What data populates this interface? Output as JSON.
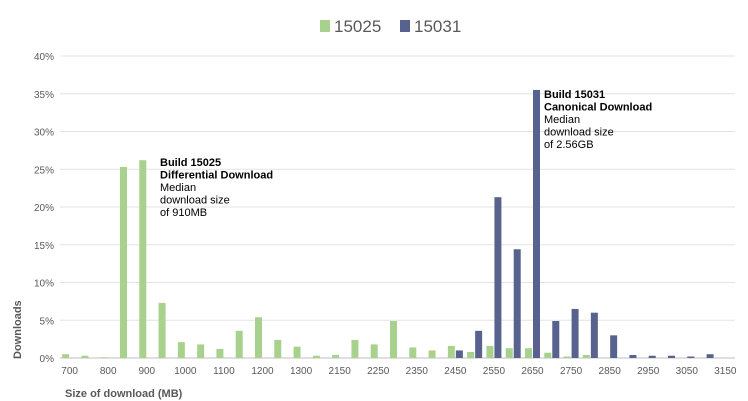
{
  "chart_data": {
    "type": "bar",
    "title": "",
    "xlabel": "Size of download (MB)",
    "ylabel": "Downloads",
    "ylim": [
      0,
      40
    ],
    "yticks": [
      "0%",
      "5%",
      "10%",
      "15%",
      "20%",
      "25%",
      "30%",
      "35%",
      "40%"
    ],
    "grid": true,
    "legend_position": "top",
    "categories": [
      "700",
      "750",
      "800",
      "850",
      "900",
      "950",
      "1000",
      "1050",
      "1100",
      "1150",
      "1200",
      "1250",
      "1300",
      "1350",
      "2150",
      "2200",
      "2250",
      "2300",
      "2350",
      "2400",
      "2450",
      "2500",
      "2550",
      "2600",
      "2650",
      "2700",
      "2750",
      "2800",
      "2850",
      "2900",
      "2950",
      "3000",
      "3050",
      "3100",
      "3150"
    ],
    "xtick_labels": [
      "700",
      "800",
      "900",
      "1000",
      "1100",
      "1200",
      "1300",
      "2150",
      "2250",
      "2350",
      "2450",
      "2550",
      "2650",
      "2750",
      "2850",
      "2950",
      "3050",
      "3150"
    ],
    "series": [
      {
        "name": "15025",
        "color": "#a9d18e",
        "values": [
          0.5,
          0.3,
          0.1,
          25.3,
          26.2,
          7.3,
          2.1,
          1.8,
          1.2,
          3.6,
          5.4,
          2.4,
          1.5,
          0.3,
          0.4,
          2.4,
          1.8,
          4.9,
          1.4,
          1.0,
          1.6,
          0.8,
          1.6,
          1.3,
          1.3,
          0.7,
          0.2,
          0.4,
          0,
          0,
          0,
          0,
          0,
          0,
          0
        ]
      },
      {
        "name": "15031",
        "color": "#58628e",
        "values": [
          0,
          0,
          0,
          0,
          0,
          0,
          0,
          0,
          0,
          0,
          0,
          0,
          0,
          0,
          0,
          0,
          0,
          0,
          0,
          0,
          1.0,
          3.6,
          21.3,
          14.4,
          35.5,
          4.9,
          6.5,
          6.0,
          3.0,
          0.4,
          0.3,
          0.3,
          0.2,
          0.5,
          0
        ]
      }
    ],
    "annotations": [
      {
        "category": "900",
        "lines": [
          {
            "text": "Build 15025",
            "bold": true
          },
          {
            "text": "Differential Download",
            "bold": true
          },
          {
            "text": "Median",
            "bold": false
          },
          {
            "text": "download size",
            "bold": false
          },
          {
            "text": "of 910MB",
            "bold": false
          }
        ]
      },
      {
        "category": "2650",
        "lines": [
          {
            "text": "Build 15031",
            "bold": true
          },
          {
            "text": "Canonical Download",
            "bold": true
          },
          {
            "text": "Median",
            "bold": false
          },
          {
            "text": "download size",
            "bold": false
          },
          {
            "text": "of 2.56GB",
            "bold": false
          }
        ]
      }
    ]
  }
}
